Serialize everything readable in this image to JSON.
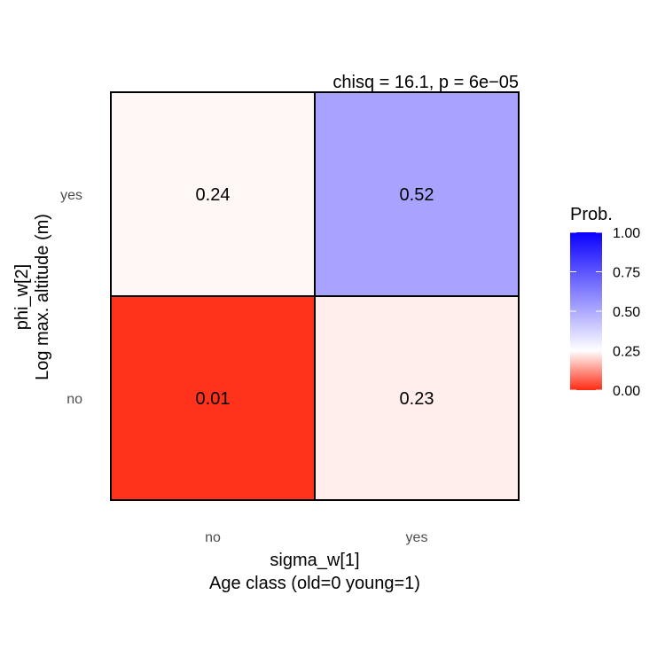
{
  "chart_data": {
    "type": "heatmap",
    "subtitle": "chisq = 16.1, p = 6e−05",
    "x_categories": [
      "no",
      "yes"
    ],
    "y_categories": [
      "no",
      "yes"
    ],
    "xlabel": [
      "sigma_w[1]",
      "Age class (old=0 young=1)"
    ],
    "ylabel": [
      "phi_w[2]",
      "Log max. altitude (m)"
    ],
    "cells": [
      {
        "x": "no",
        "y": "yes",
        "value": 0.24,
        "label": "0.24"
      },
      {
        "x": "yes",
        "y": "yes",
        "value": 0.52,
        "label": "0.52"
      },
      {
        "x": "no",
        "y": "no",
        "value": 0.01,
        "label": "0.01"
      },
      {
        "x": "yes",
        "y": "no",
        "value": 0.23,
        "label": "0.23"
      }
    ],
    "legend": {
      "title": "Prob.",
      "placement": "right",
      "range": [
        0,
        1
      ],
      "ticks": [
        1.0,
        0.75,
        0.5,
        0.25,
        0.0
      ],
      "tick_labels": [
        "1.00",
        "0.75",
        "0.50",
        "0.25",
        "0.00"
      ],
      "low_color": "#ff2a12",
      "mid_color": "#ffffff",
      "mid_value": 0.25,
      "high_color": "#0a00ff"
    },
    "grid": false
  }
}
